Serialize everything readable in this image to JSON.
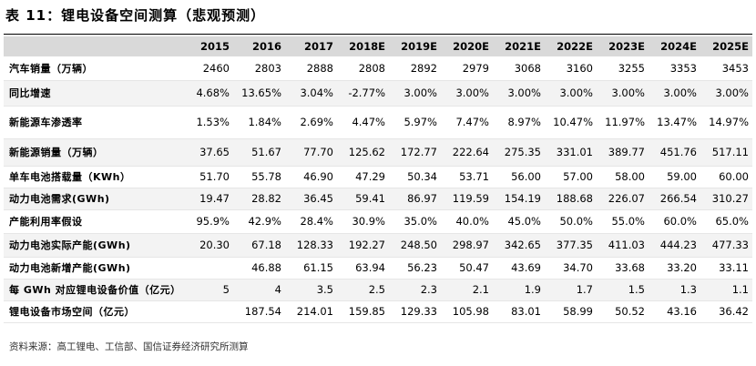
{
  "title": "表 11：锂电设备空间测算（悲观预测）",
  "table": {
    "columns": [
      "2015",
      "2016",
      "2017",
      "2018E",
      "2019E",
      "2020E",
      "2021E",
      "2022E",
      "2023E",
      "2024E",
      "2025E"
    ],
    "rows": [
      {
        "label": "汽车销量（万辆）",
        "cells": [
          "2460",
          "2803",
          "2888",
          "2808",
          "2892",
          "2979",
          "3068",
          "3160",
          "3255",
          "3353",
          "3453"
        ]
      },
      {
        "label": "同比增速",
        "cells": [
          "4.68%",
          "13.65%",
          "3.04%",
          "-2.77%",
          "3.00%",
          "3.00%",
          "3.00%",
          "3.00%",
          "3.00%",
          "3.00%",
          "3.00%"
        ]
      },
      {
        "label": "新能源车渗透率",
        "cells": [
          "1.53%",
          "1.84%",
          "2.69%",
          "4.47%",
          "5.97%",
          "7.47%",
          "8.97%",
          "10.47%",
          "11.97%",
          "13.47%",
          "14.97%"
        ]
      },
      {
        "label": "新能源销量（万辆）",
        "cells": [
          "37.65",
          "51.67",
          "77.70",
          "125.62",
          "172.77",
          "222.64",
          "275.35",
          "331.01",
          "389.77",
          "451.76",
          "517.11"
        ]
      },
      {
        "label": "单车电池搭载量（KWh）",
        "cells": [
          "51.70",
          "55.78",
          "46.90",
          "47.29",
          "50.34",
          "53.71",
          "56.00",
          "57.00",
          "58.00",
          "59.00",
          "60.00"
        ]
      },
      {
        "label": "动力电池需求(GWh)",
        "cells": [
          "19.47",
          "28.82",
          "36.45",
          "59.41",
          "86.97",
          "119.59",
          "154.19",
          "188.68",
          "226.07",
          "266.54",
          "310.27"
        ]
      },
      {
        "label": "产能利用率假设",
        "cells": [
          "95.9%",
          "42.9%",
          "28.4%",
          "30.9%",
          "35.0%",
          "40.0%",
          "45.0%",
          "50.0%",
          "55.0%",
          "60.0%",
          "65.0%"
        ]
      },
      {
        "label": "动力电池实际产能(GWh)",
        "cells": [
          "20.30",
          "67.18",
          "128.33",
          "192.27",
          "248.50",
          "298.97",
          "342.65",
          "377.35",
          "411.03",
          "444.23",
          "477.33"
        ]
      },
      {
        "label": "动力电池新增产能(GWh)",
        "cells": [
          null,
          "46.88",
          "61.15",
          "63.94",
          "56.23",
          "50.47",
          "43.69",
          "34.70",
          "33.68",
          "33.20",
          "33.11"
        ]
      },
      {
        "label": "每 GWh 对应锂电设备价值（亿元）",
        "cells": [
          "5",
          "4",
          "3.5",
          "2.5",
          "2.3",
          "2.1",
          "1.9",
          "1.7",
          "1.5",
          "1.3",
          "1.1"
        ]
      },
      {
        "label": "锂电设备市场空间（亿元）",
        "cells": [
          null,
          "187.54",
          "214.01",
          "159.85",
          "129.33",
          "105.98",
          "83.01",
          "58.99",
          "50.52",
          "43.16",
          "36.42"
        ]
      }
    ]
  },
  "source": "资料来源：高工锂电、工信部、国信证券经济研究所测算"
}
